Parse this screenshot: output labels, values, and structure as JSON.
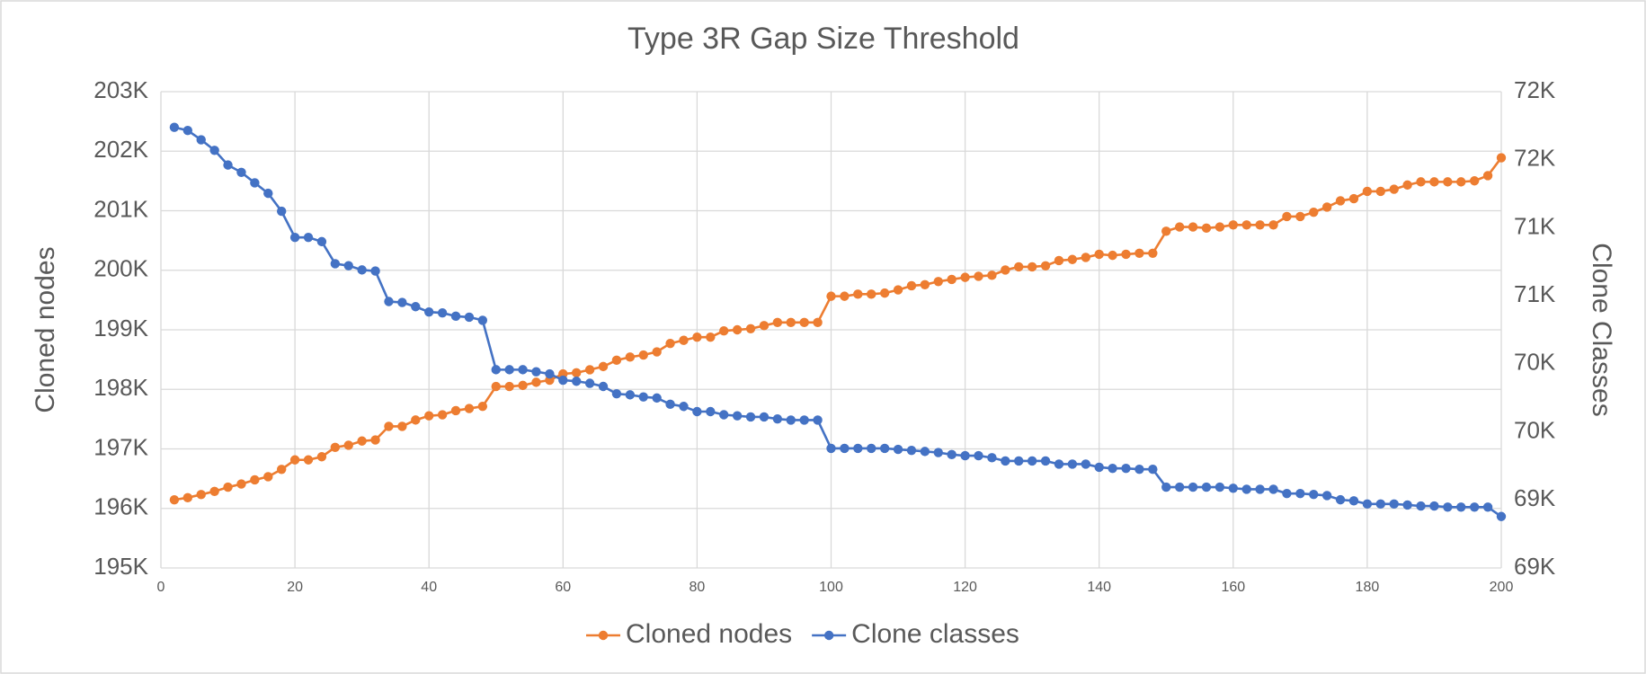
{
  "chart_data": {
    "type": "line",
    "title": "Type 3R Gap Size Threshold",
    "y_label": "Cloned nodes",
    "y2_label": "Clone Classes",
    "x": [
      2,
      4,
      6,
      8,
      10,
      12,
      14,
      16,
      18,
      20,
      22,
      24,
      26,
      28,
      30,
      32,
      34,
      36,
      38,
      40,
      42,
      44,
      46,
      48,
      50,
      52,
      54,
      56,
      58,
      60,
      62,
      64,
      66,
      68,
      70,
      72,
      74,
      76,
      78,
      80,
      82,
      84,
      86,
      88,
      90,
      92,
      94,
      96,
      98,
      100,
      102,
      104,
      106,
      108,
      110,
      112,
      114,
      116,
      118,
      120,
      122,
      124,
      126,
      128,
      130,
      132,
      134,
      136,
      138,
      140,
      142,
      144,
      146,
      148,
      150,
      152,
      154,
      156,
      158,
      160,
      162,
      164,
      166,
      168,
      170,
      172,
      174,
      176,
      178,
      180,
      182,
      184,
      186,
      188,
      190,
      192,
      194,
      196,
      198,
      200
    ],
    "xlim": [
      0,
      200
    ],
    "xticks": [
      0,
      20,
      40,
      60,
      80,
      100,
      120,
      140,
      160,
      180,
      200
    ],
    "ylim": [
      195000,
      203000
    ],
    "yticks": [
      {
        "value": 195000,
        "label": "195K"
      },
      {
        "value": 196000,
        "label": "196K"
      },
      {
        "value": 197000,
        "label": "197K"
      },
      {
        "value": 198000,
        "label": "198K"
      },
      {
        "value": 199000,
        "label": "199K"
      },
      {
        "value": 200000,
        "label": "200K"
      },
      {
        "value": 201000,
        "label": "201K"
      },
      {
        "value": 202000,
        "label": "202K"
      },
      {
        "value": 203000,
        "label": "203K"
      }
    ],
    "y2lim": [
      68500,
      72000
    ],
    "y2ticks": [
      {
        "value": 68500,
        "label": "69K"
      },
      {
        "value": 69000,
        "label": "69K"
      },
      {
        "value": 69500,
        "label": "70K"
      },
      {
        "value": 70000,
        "label": "70K"
      },
      {
        "value": 70500,
        "label": "71K"
      },
      {
        "value": 71000,
        "label": "71K"
      },
      {
        "value": 71500,
        "label": "72K"
      },
      {
        "value": 72000,
        "label": "72K"
      }
    ],
    "grid": true,
    "legend": "bottom",
    "series": [
      {
        "name": "Cloned nodes",
        "color": "#ed7d31",
        "values": [
          196145,
          196180,
          196233,
          196286,
          196357,
          196410,
          196480,
          196533,
          196656,
          196815,
          196815,
          196868,
          197026,
          197062,
          197132,
          197150,
          197379,
          197379,
          197485,
          197555,
          197573,
          197643,
          197678,
          197714,
          198048,
          198048,
          198066,
          198119,
          198154,
          198260,
          198278,
          198330,
          198383,
          198489,
          198542,
          198577,
          198630,
          198771,
          198824,
          198877,
          198877,
          198982,
          199000,
          199018,
          199070,
          199123,
          199123,
          199123,
          199123,
          199564,
          199564,
          199599,
          199599,
          199617,
          199670,
          199740,
          199758,
          199811,
          199846,
          199881,
          199899,
          199916,
          200004,
          200057,
          200057,
          200075,
          200163,
          200181,
          200216,
          200269,
          200251,
          200269,
          200286,
          200286,
          200656,
          200727,
          200727,
          200709,
          200727,
          200762,
          200762,
          200762,
          200762,
          200903,
          200903,
          200974,
          201062,
          201167,
          201203,
          201326,
          201326,
          201361,
          201432,
          201485,
          201485,
          201485,
          201485,
          201502,
          201590,
          201890
        ]
      },
      {
        "name": "Clone classes",
        "color": "#4472c4",
        "axis": "y2",
        "values": [
          71738,
          71715,
          71646,
          71569,
          71461,
          71407,
          71330,
          71253,
          71121,
          70929,
          70929,
          70898,
          70736,
          70721,
          70690,
          70682,
          70458,
          70451,
          70420,
          70381,
          70374,
          70350,
          70343,
          70320,
          69957,
          69957,
          69957,
          69942,
          69926,
          69880,
          69872,
          69857,
          69834,
          69780,
          69772,
          69757,
          69749,
          69703,
          69687,
          69649,
          69649,
          69626,
          69618,
          69610,
          69610,
          69595,
          69587,
          69587,
          69587,
          69379,
          69379,
          69379,
          69379,
          69379,
          69371,
          69364,
          69356,
          69348,
          69333,
          69325,
          69325,
          69310,
          69286,
          69286,
          69286,
          69286,
          69263,
          69263,
          69263,
          69240,
          69232,
          69232,
          69225,
          69225,
          69094,
          69094,
          69094,
          69094,
          69094,
          69086,
          69078,
          69078,
          69078,
          69047,
          69047,
          69040,
          69032,
          69001,
          68993,
          68970,
          68970,
          68970,
          68963,
          68955,
          68955,
          68947,
          68947,
          68947,
          68947,
          68878
        ]
      }
    ]
  }
}
